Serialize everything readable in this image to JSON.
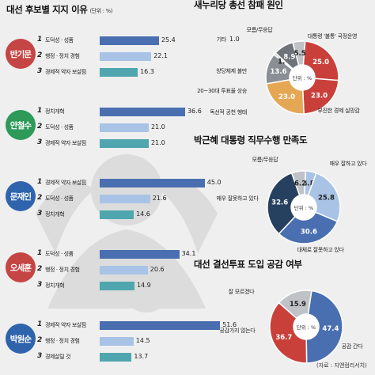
{
  "source": "(자료 : 지앤컴리서치)",
  "colors": {
    "dark": "#4a6fb0",
    "light": "#a8c3e6",
    "teal": "#4fa6ae",
    "red": "#c9403a",
    "gray": "#8a8f96",
    "lightgray": "#bfc3c8",
    "orange": "#e6a755",
    "navy": "#26405f"
  },
  "chart_data": [
    {
      "type": "bar",
      "title": "대선 후보별 지지 이유",
      "unit": "단위 : %",
      "groups": [
        {
          "candidate": "반기문",
          "color": "#c54545",
          "items": [
            {
              "rank": "1",
              "label": "도덕성 · 성품",
              "value": 25.4
            },
            {
              "rank": "2",
              "label": "행정 · 정치 경험",
              "value": 22.1
            },
            {
              "rank": "3",
              "label": "경제적 약자 보살핌",
              "value": 16.3
            }
          ]
        },
        {
          "candidate": "안철수",
          "color": "#2e9a5a",
          "items": [
            {
              "rank": "1",
              "label": "정치개혁",
              "value": 36.6
            },
            {
              "rank": "2",
              "label": "도덕성 · 성품",
              "value": 21.0
            },
            {
              "rank": "3",
              "label": "경제적 약자 보살핌",
              "value": 21.0
            }
          ]
        },
        {
          "candidate": "문재인",
          "color": "#2f64ad",
          "items": [
            {
              "rank": "1",
              "label": "경제적 약자 보살핌",
              "value": 45.0
            },
            {
              "rank": "2",
              "label": "도덕성 · 성품",
              "value": 21.6
            },
            {
              "rank": "3",
              "label": "정치개혁",
              "value": 14.6
            }
          ]
        },
        {
          "candidate": "오세훈",
          "color": "#c54545",
          "items": [
            {
              "rank": "1",
              "label": "도덕성 · 성품",
              "value": 34.1
            },
            {
              "rank": "2",
              "label": "행정 · 정치 경험",
              "value": 20.6
            },
            {
              "rank": "3",
              "label": "정치개혁",
              "value": 14.9
            }
          ]
        },
        {
          "candidate": "박원순",
          "color": "#2f64ad",
          "items": [
            {
              "rank": "1",
              "label": "경제적 약자 보살핌",
              "value": 51.6
            },
            {
              "rank": "2",
              "label": "행정 · 정치 경험",
              "value": 14.5
            },
            {
              "rank": "3",
              "label": "경제살릴 것",
              "value": 13.7
            }
          ]
        }
      ]
    },
    {
      "type": "pie",
      "title": "새누리당 총선 참패 원인",
      "center": "단위 : %",
      "slices": [
        {
          "label": "대통령 '불통' 국정운영",
          "value": 25.0,
          "color": "#c9403a"
        },
        {
          "label": "부진한 경제 실망감",
          "value": 23.0,
          "color": "#c9403a"
        },
        {
          "label": "독선적 공천 행태",
          "value": 23.0,
          "color": "#e6a755"
        },
        {
          "label": "20~30대 투표율 상승",
          "value": 13.6,
          "color": "#8a8f96"
        },
        {
          "label": "양당체제 불만",
          "value": "",
          "color": "#8a8f96"
        },
        {
          "label": "기타",
          "value": 1.0,
          "color": "#bfc3c8"
        },
        {
          "label": "모름/무응답",
          "value": 8.9,
          "color": "#6e7379"
        },
        {
          "label": "",
          "value": 5.5,
          "color": "#bfc3c8"
        }
      ]
    },
    {
      "type": "pie",
      "title": "박근혜 대통령 직무수행 만족도",
      "center": "단위 : %",
      "slices": [
        {
          "label": "매우 잘하고 있다",
          "value": 4.8,
          "color": "#a8c3e6"
        },
        {
          "label": "",
          "value": 25.8,
          "color": "#a8c3e6"
        },
        {
          "label": "대체로 잘못하고 있다",
          "value": 30.6,
          "color": "#4a6fb0"
        },
        {
          "label": "매우 잘못하고 있다",
          "value": 32.6,
          "color": "#26405f"
        },
        {
          "label": "모름/무응답",
          "value": 6.2,
          "color": "#bfc3c8"
        }
      ]
    },
    {
      "type": "pie",
      "title": "대선 결선투표 도입 공감 여부",
      "center": "단위 : %",
      "slices": [
        {
          "label": "공감 간다",
          "value": 47.4,
          "color": "#4a6fb0"
        },
        {
          "label": "공감가지 않는다",
          "value": 36.7,
          "color": "#c9403a"
        },
        {
          "label": "잘 모르겠다",
          "value": 15.9,
          "color": "#bfc3c8"
        }
      ]
    }
  ]
}
